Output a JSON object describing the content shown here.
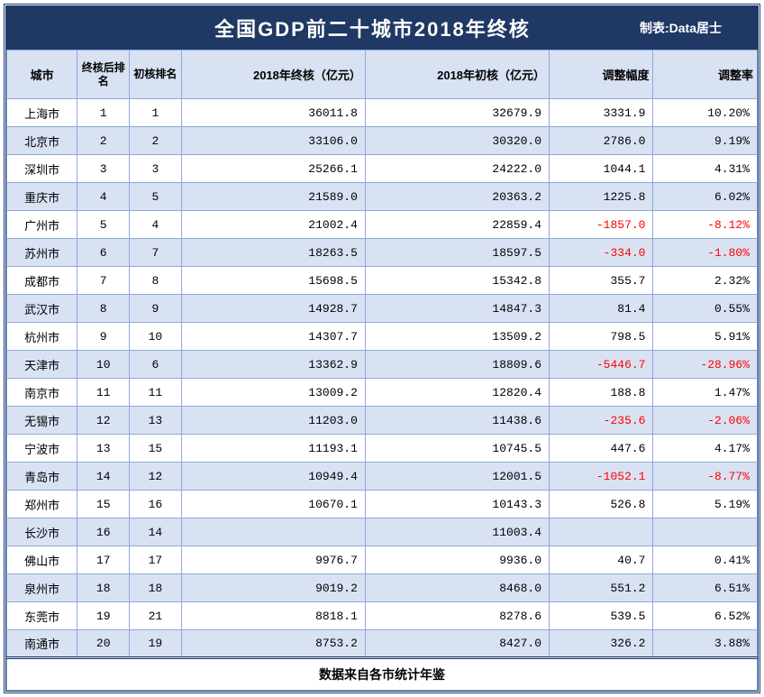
{
  "title": "全国GDP前二十城市2018年终核",
  "credit": "制表:Data居士",
  "footer": "数据来自各市统计年鉴",
  "colors": {
    "header_bg": "#1f3864",
    "header_fg": "#ffffff",
    "th_bg": "#d9e2f3",
    "row_even_bg": "#d9e2f3",
    "row_odd_bg": "#ffffff",
    "border": "#8ea9db",
    "outer_border": "#1a3a6e",
    "negative": "#ff0000"
  },
  "columns": [
    {
      "key": "city",
      "label": "城市",
      "class": "c-city"
    },
    {
      "key": "rank_final",
      "label": "终核后排名",
      "class": "c-rank1 narrow"
    },
    {
      "key": "rank_initial",
      "label": "初核排名",
      "class": "c-rank2 narrow"
    },
    {
      "key": "gdp_final",
      "label": "2018年终核（亿元）",
      "class": "c-final"
    },
    {
      "key": "gdp_initial",
      "label": "2018年初核（亿元）",
      "class": "c-initial"
    },
    {
      "key": "diff",
      "label": "调整幅度",
      "class": "c-diff"
    },
    {
      "key": "rate",
      "label": "调整率",
      "class": "c-rate"
    }
  ],
  "rows": [
    {
      "city": "上海市",
      "rank_final": "1",
      "rank_initial": "1",
      "gdp_final": "36011.8",
      "gdp_initial": "32679.9",
      "diff": "3331.9",
      "rate": "10.20%"
    },
    {
      "city": "北京市",
      "rank_final": "2",
      "rank_initial": "2",
      "gdp_final": "33106.0",
      "gdp_initial": "30320.0",
      "diff": "2786.0",
      "rate": "9.19%"
    },
    {
      "city": "深圳市",
      "rank_final": "3",
      "rank_initial": "3",
      "gdp_final": "25266.1",
      "gdp_initial": "24222.0",
      "diff": "1044.1",
      "rate": "4.31%"
    },
    {
      "city": "重庆市",
      "rank_final": "4",
      "rank_initial": "5",
      "gdp_final": "21589.0",
      "gdp_initial": "20363.2",
      "diff": "1225.8",
      "rate": "6.02%"
    },
    {
      "city": "广州市",
      "rank_final": "5",
      "rank_initial": "4",
      "gdp_final": "21002.4",
      "gdp_initial": "22859.4",
      "diff": "-1857.0",
      "rate": "-8.12%",
      "neg": true
    },
    {
      "city": "苏州市",
      "rank_final": "6",
      "rank_initial": "7",
      "gdp_final": "18263.5",
      "gdp_initial": "18597.5",
      "diff": "-334.0",
      "rate": "-1.80%",
      "neg": true
    },
    {
      "city": "成都市",
      "rank_final": "7",
      "rank_initial": "8",
      "gdp_final": "15698.5",
      "gdp_initial": "15342.8",
      "diff": "355.7",
      "rate": "2.32%"
    },
    {
      "city": "武汉市",
      "rank_final": "8",
      "rank_initial": "9",
      "gdp_final": "14928.7",
      "gdp_initial": "14847.3",
      "diff": "81.4",
      "rate": "0.55%"
    },
    {
      "city": "杭州市",
      "rank_final": "9",
      "rank_initial": "10",
      "gdp_final": "14307.7",
      "gdp_initial": "13509.2",
      "diff": "798.5",
      "rate": "5.91%"
    },
    {
      "city": "天津市",
      "rank_final": "10",
      "rank_initial": "6",
      "gdp_final": "13362.9",
      "gdp_initial": "18809.6",
      "diff": "-5446.7",
      "rate": "-28.96%",
      "neg": true
    },
    {
      "city": "南京市",
      "rank_final": "11",
      "rank_initial": "11",
      "gdp_final": "13009.2",
      "gdp_initial": "12820.4",
      "diff": "188.8",
      "rate": "1.47%"
    },
    {
      "city": "无锡市",
      "rank_final": "12",
      "rank_initial": "13",
      "gdp_final": "11203.0",
      "gdp_initial": "11438.6",
      "diff": "-235.6",
      "rate": "-2.06%",
      "neg": true
    },
    {
      "city": "宁波市",
      "rank_final": "13",
      "rank_initial": "15",
      "gdp_final": "11193.1",
      "gdp_initial": "10745.5",
      "diff": "447.6",
      "rate": "4.17%"
    },
    {
      "city": "青岛市",
      "rank_final": "14",
      "rank_initial": "12",
      "gdp_final": "10949.4",
      "gdp_initial": "12001.5",
      "diff": "-1052.1",
      "rate": "-8.77%",
      "neg": true
    },
    {
      "city": "郑州市",
      "rank_final": "15",
      "rank_initial": "16",
      "gdp_final": "10670.1",
      "gdp_initial": "10143.3",
      "diff": "526.8",
      "rate": "5.19%"
    },
    {
      "city": "长沙市",
      "rank_final": "16",
      "rank_initial": "14",
      "gdp_final": "",
      "gdp_initial": "11003.4",
      "diff": "",
      "rate": ""
    },
    {
      "city": "佛山市",
      "rank_final": "17",
      "rank_initial": "17",
      "gdp_final": "9976.7",
      "gdp_initial": "9936.0",
      "diff": "40.7",
      "rate": "0.41%"
    },
    {
      "city": "泉州市",
      "rank_final": "18",
      "rank_initial": "18",
      "gdp_final": "9019.2",
      "gdp_initial": "8468.0",
      "diff": "551.2",
      "rate": "6.51%"
    },
    {
      "city": "东莞市",
      "rank_final": "19",
      "rank_initial": "21",
      "gdp_final": "8818.1",
      "gdp_initial": "8278.6",
      "diff": "539.5",
      "rate": "6.52%"
    },
    {
      "city": "南通市",
      "rank_final": "20",
      "rank_initial": "19",
      "gdp_final": "8753.2",
      "gdp_initial": "8427.0",
      "diff": "326.2",
      "rate": "3.88%"
    }
  ]
}
